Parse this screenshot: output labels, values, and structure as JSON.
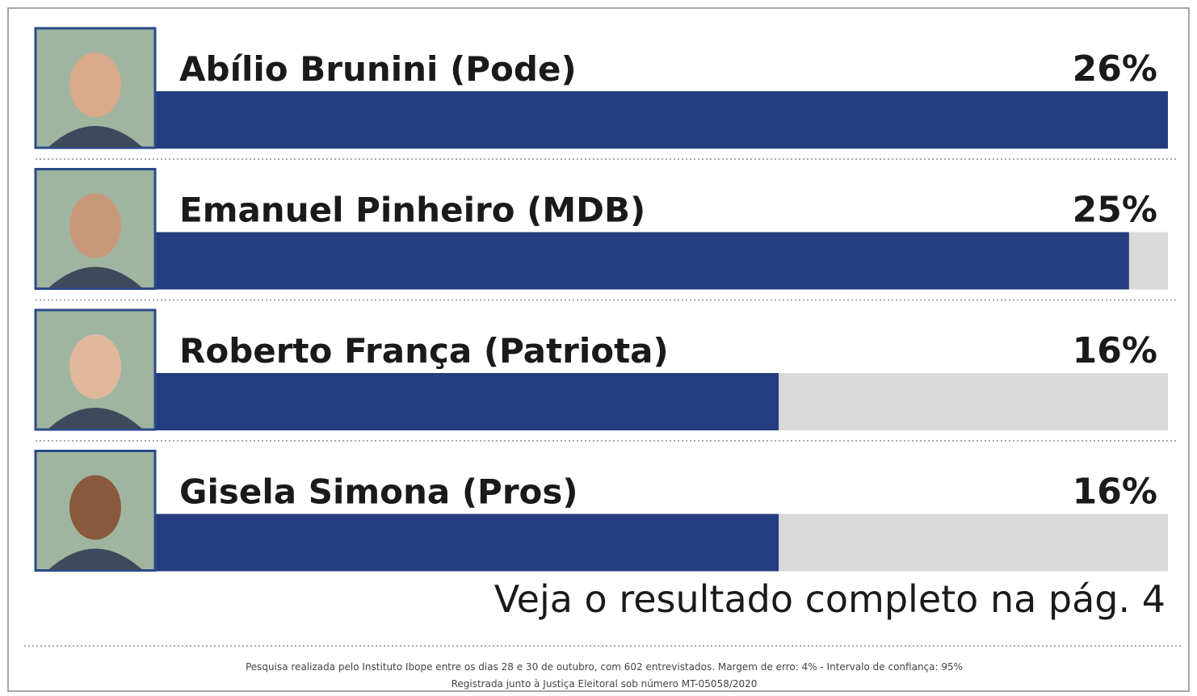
{
  "chart_data": {
    "type": "hbar",
    "categories": [
      "Abílio Brunini (Pode)",
      "Emanuel Pinheiro (MDB)",
      "Roberto França (Patriota)",
      "Gisela Simona (Pros)"
    ],
    "values": [
      26,
      25,
      16,
      16
    ],
    "value_labels": [
      "26%",
      "25%",
      "16%",
      "16%"
    ],
    "color": "#243d7e",
    "track_color": "#d9d9d9",
    "annotation": "Veja o resultado completo na pág. 4",
    "footnote": [
      "Pesquisa realizada pelo Instituto Ibope entre os dias 28 e 30 de outubro, com 602 entrevistados. Margem de erro: 4% - Intervalo de confiança: 95%",
      "Registrada junto à Justiça Eleitoral sob número MT-05058/2020"
    ]
  }
}
